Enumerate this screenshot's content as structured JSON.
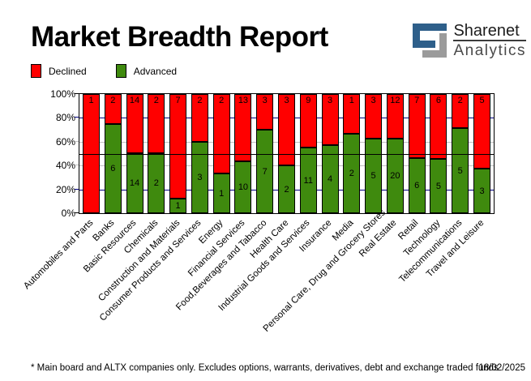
{
  "header": {
    "title": "Market Breadth Report",
    "logo": {
      "line1": "Sharenet",
      "line2": "Analytics"
    }
  },
  "footer": {
    "note": "* Main board and ALTX companies only. Excludes options, warrants, derivatives, debt and exchange traded funds",
    "date": "18/02/2025"
  },
  "colors": {
    "declined": "#ff0000",
    "advanced": "#3f8a0e",
    "grid_major": "#000080",
    "grid_minor": "#c0c0c0",
    "midline": "#000000",
    "logo_blue": "#2e5f8a",
    "logo_gray": "#9b9b9b"
  },
  "chart_data": {
    "type": "bar",
    "stacked": true,
    "percent_axis": true,
    "title": "Market Breadth Report",
    "legend_position": "top-left",
    "ylim": [
      0,
      100
    ],
    "categories": [
      "Automobiles and Parts",
      "Banks",
      "Basic Resources",
      "Chemicals",
      "Construction and Materials",
      "Consumer Products and Services",
      "Energy",
      "Financial Services",
      "Food,Beverages and Tabacco",
      "Health Care",
      "Industrial Goods and Services",
      "Insurance",
      "Media",
      "Personal Care, Drug and Grocery Stores",
      "Real Estate",
      "Retail",
      "Technology",
      "Telecommunications",
      "Travel and Leisure"
    ],
    "series": [
      {
        "name": "Declined",
        "color": "#ff0000",
        "values": [
          1,
          2,
          14,
          2,
          7,
          2,
          2,
          13,
          3,
          3,
          9,
          3,
          1,
          3,
          12,
          7,
          6,
          2,
          5
        ]
      },
      {
        "name": "Advanced",
        "color": "#3f8a0e",
        "values": [
          0,
          6,
          14,
          2,
          1,
          3,
          1,
          10,
          7,
          2,
          11,
          4,
          2,
          5,
          20,
          6,
          5,
          5,
          3
        ]
      }
    ],
    "yticks": [
      {
        "label": "0%",
        "value": 0,
        "grid": null
      },
      {
        "label": "20%",
        "value": 20,
        "grid": "#000080"
      },
      {
        "label": "40%",
        "value": 40,
        "grid": "#c0c0c0"
      },
      {
        "label": "60%",
        "value": 60,
        "grid": "#c0c0c0"
      },
      {
        "label": "80%",
        "value": 80,
        "grid": "#000080"
      },
      {
        "label": "100%",
        "value": 100,
        "grid": null
      }
    ],
    "midline": {
      "value": 50,
      "color": "#000000"
    }
  }
}
